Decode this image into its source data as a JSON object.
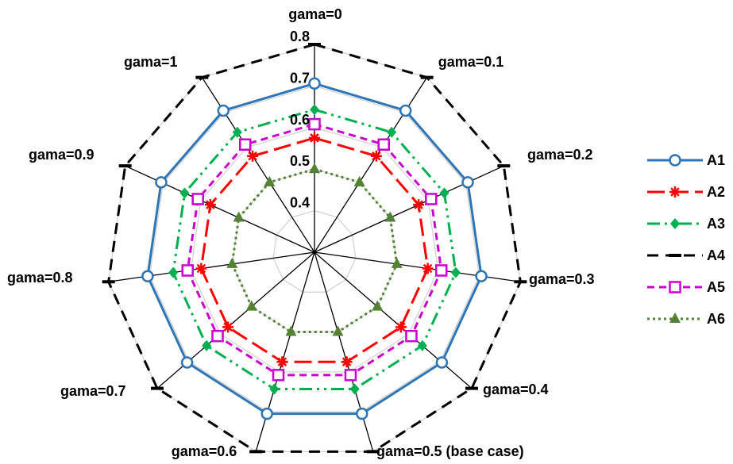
{
  "chart_data": {
    "type": "radar",
    "axes": [
      "gama=0",
      "gama=0.1",
      "gama=0.2",
      "gama=0.3",
      "gama=0.4",
      "gama=0.5 (base case)",
      "gama=0.6",
      "gama=0.7",
      "gama=0.8",
      "gama=0.9",
      "gama=1"
    ],
    "rlim": [
      0.4,
      0.8
    ],
    "ticks": [
      0.4,
      0.5,
      0.6,
      0.7,
      0.8
    ],
    "tick_labels": [
      "0.4",
      "0.5",
      "0.6",
      "0.7",
      "0.8"
    ],
    "grid": true,
    "legend_position": "right",
    "series": [
      {
        "name": "A1",
        "color": "#2E75B6",
        "dash": "solid",
        "marker": "circle-open",
        "values": [
          0.706,
          0.705,
          0.705,
          0.705,
          0.705,
          0.705,
          0.705,
          0.705,
          0.705,
          0.705,
          0.705
        ]
      },
      {
        "name": "A2",
        "color": "#FF0000",
        "dash": "long-dash",
        "marker": "star",
        "values": [
          0.575,
          0.575,
          0.575,
          0.575,
          0.575,
          0.575,
          0.575,
          0.575,
          0.575,
          0.575,
          0.575
        ]
      },
      {
        "name": "A3",
        "color": "#00B050",
        "dash": "dash-dot-dot",
        "marker": "diamond",
        "values": [
          0.643,
          0.643,
          0.643,
          0.643,
          0.643,
          0.643,
          0.643,
          0.643,
          0.643,
          0.643,
          0.643
        ]
      },
      {
        "name": "A4",
        "color": "#000000",
        "dash": "dash",
        "marker": "dash",
        "values": [
          0.8,
          0.8,
          0.8,
          0.8,
          0.8,
          0.8,
          0.8,
          0.8,
          0.8,
          0.8,
          0.8
        ]
      },
      {
        "name": "A5",
        "color": "#CC00CC",
        "dash": "short-dash",
        "marker": "square-open",
        "values": [
          0.608,
          0.608,
          0.608,
          0.608,
          0.608,
          0.608,
          0.608,
          0.608,
          0.608,
          0.608,
          0.608
        ]
      },
      {
        "name": "A6",
        "color": "#548235",
        "dash": "dotted",
        "marker": "triangle",
        "values": [
          0.5,
          0.5,
          0.5,
          0.5,
          0.5,
          0.5,
          0.5,
          0.5,
          0.5,
          0.5,
          0.5
        ]
      }
    ]
  }
}
